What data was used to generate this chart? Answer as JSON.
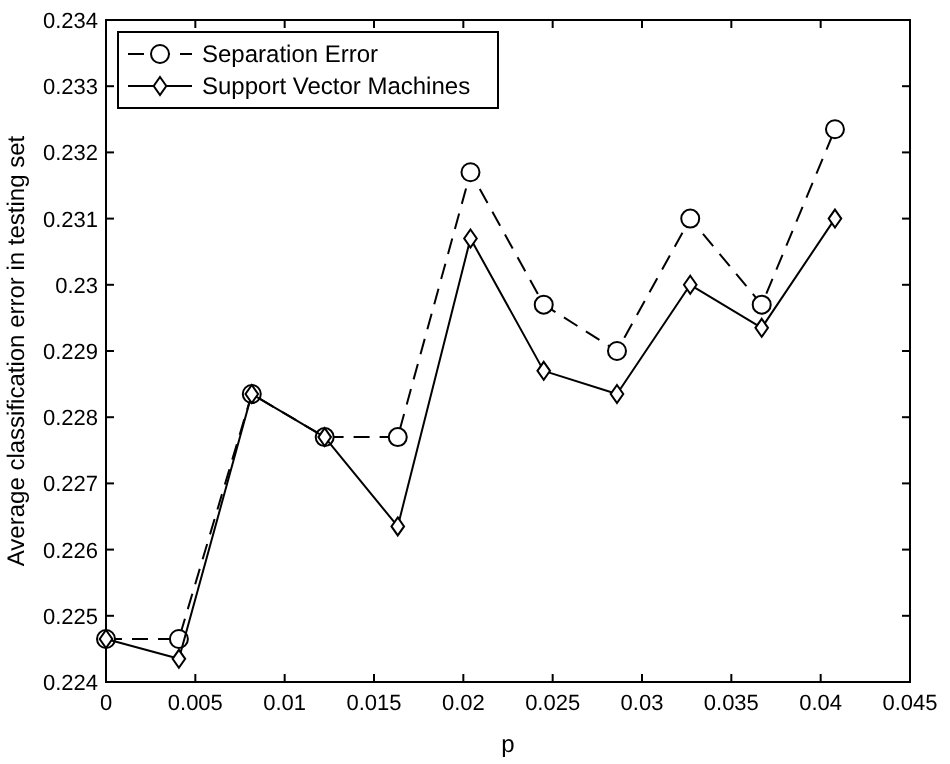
{
  "chart_data": {
    "type": "line",
    "xlabel": "p",
    "ylabel": "Average classification error in testing set",
    "x": [
      0,
      0.00408,
      0.00816,
      0.01224,
      0.01633,
      0.0204,
      0.0245,
      0.0286,
      0.0327,
      0.0367,
      0.0408
    ],
    "series": [
      {
        "name": "Separation Error",
        "color": "#000000",
        "marker": "circle",
        "line_style": "dashed",
        "values": [
          0.22465,
          0.22465,
          0.22835,
          0.2277,
          0.2277,
          0.2317,
          0.2297,
          0.229,
          0.231,
          0.2297,
          0.23235
        ]
      },
      {
        "name": "Support Vector Machines",
        "color": "#000000",
        "marker": "diamond",
        "line_style": "solid",
        "values": [
          0.22465,
          0.22435,
          0.22835,
          0.2277,
          0.22635,
          0.2307,
          0.2287,
          0.22835,
          0.23,
          0.22935,
          0.231
        ]
      }
    ],
    "xlim": [
      0,
      0.045
    ],
    "xticks": [
      0,
      0.005,
      0.01,
      0.015,
      0.02,
      0.025,
      0.03,
      0.035,
      0.04,
      0.045
    ],
    "ylim": [
      0.224,
      0.234
    ],
    "yticks": [
      0.224,
      0.225,
      0.226,
      0.227,
      0.228,
      0.229,
      0.23,
      0.231,
      0.232,
      0.233,
      0.234
    ],
    "grid": false,
    "legend": "top left"
  }
}
